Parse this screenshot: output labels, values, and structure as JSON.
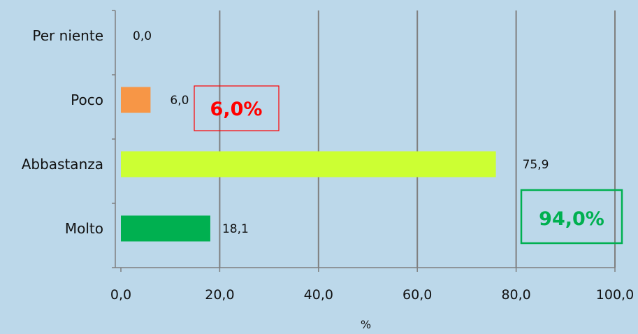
{
  "chart_data": {
    "type": "bar",
    "orientation": "horizontal",
    "categories": [
      "Per niente",
      "Poco",
      "Abbastanza",
      "Molto"
    ],
    "values": [
      0.0,
      6.0,
      75.9,
      18.1
    ],
    "value_labels": [
      "0,0",
      "6,0",
      "75,9",
      "18,1"
    ],
    "bar_colors": [
      "#f79646",
      "#f79646",
      "#ccff33",
      "#00b050"
    ],
    "xlim": [
      0,
      100
    ],
    "xticks": [
      0,
      20,
      40,
      60,
      80,
      100
    ],
    "xtick_labels": [
      "0,0",
      "20,0",
      "40,0",
      "60,0",
      "80,0",
      "100,0"
    ],
    "xlabel": "%",
    "ylabel": "",
    "title": "",
    "grid": true,
    "annotations": [
      {
        "text": "6,0%",
        "color": "#ff0000"
      },
      {
        "text": "94,0%",
        "color": "#00b050"
      }
    ]
  }
}
